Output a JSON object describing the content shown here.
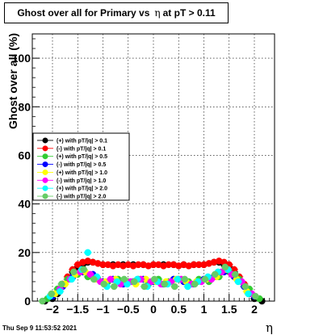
{
  "title": {
    "prefix": "Ghost over all for Primary vs",
    "symbol": "η",
    "suffix": "at pT > 0.11"
  },
  "footer": {
    "timestamp": "Thu Sep  9 11:53:52 2021"
  },
  "chart_data": {
    "type": "scatter",
    "ylabel": "Ghost over all (%)",
    "xlabel": "η",
    "xlim": [
      -2.4,
      2.4
    ],
    "ylim": [
      0,
      110
    ],
    "x_ticks": [
      {
        "v": -2,
        "label": "−2"
      },
      {
        "v": -1.5,
        "label": "−1.5"
      },
      {
        "v": -1,
        "label": "−1"
      },
      {
        "v": -0.5,
        "label": "−0.5"
      },
      {
        "v": 0,
        "label": "0"
      },
      {
        "v": 0.5,
        "label": "0.5"
      },
      {
        "v": 1,
        "label": "1"
      },
      {
        "v": 1.5,
        "label": "1.5"
      },
      {
        "v": 2,
        "label": "2"
      }
    ],
    "y_ticks": [
      {
        "v": 0,
        "label": "0"
      },
      {
        "v": 20,
        "label": "20"
      },
      {
        "v": 40,
        "label": "40"
      },
      {
        "v": 60,
        "label": "60"
      },
      {
        "v": 80,
        "label": "80"
      },
      {
        "v": 100,
        "label": "100"
      }
    ],
    "grid": true,
    "legend_position": "left-middle",
    "series": [
      {
        "name": "(+) with pT/|q| > 0.1",
        "color": "#000000",
        "x": [
          -2.15,
          -2.0,
          -1.9,
          -1.8,
          -1.7,
          -1.6,
          -1.5,
          -1.4,
          -1.3,
          -1.2,
          -1.0,
          -0.8,
          -0.6,
          -0.4,
          -0.2,
          0.0,
          0.2,
          0.4,
          0.6,
          0.8,
          1.0,
          1.2,
          1.3,
          1.4,
          1.5,
          1.6,
          1.7,
          1.8,
          1.9,
          2.0,
          2.15
        ],
        "y": [
          0,
          1,
          3,
          6,
          9,
          12,
          14,
          15,
          16,
          16,
          15,
          15,
          15,
          15,
          15,
          15,
          15,
          15,
          15,
          15,
          15,
          16,
          16,
          15,
          14,
          12,
          9,
          6,
          3,
          1,
          0
        ]
      },
      {
        "name": "(-) with pT/|q| > 0.1",
        "color": "#ff0000",
        "x": [
          -1.8,
          -1.7,
          -1.6,
          -1.5,
          -1.4,
          -1.3,
          -1.2,
          -1.1,
          -1.0,
          -0.9,
          -0.8,
          -0.7,
          -0.6,
          -0.5,
          -0.4,
          -0.3,
          -0.2,
          -0.1,
          0.0,
          0.1,
          0.2,
          0.3,
          0.4,
          0.5,
          0.6,
          0.7,
          0.8,
          0.9,
          1.0,
          1.1,
          1.2,
          1.3,
          1.4,
          1.5,
          1.6,
          1.7,
          1.8
        ],
        "y": [
          7,
          10,
          13,
          15,
          16,
          16.5,
          16,
          15.5,
          15,
          15,
          14.5,
          15,
          14.5,
          15,
          14.5,
          15,
          15,
          14.5,
          15,
          15,
          14.5,
          15,
          15,
          14.5,
          15,
          14.5,
          15,
          15,
          15,
          15.5,
          16,
          16.5,
          16,
          15,
          13,
          10,
          7
        ]
      },
      {
        "name": "(+) with pT/|q| > 0.5",
        "color": "#33cc33",
        "x": [
          -2.1,
          -1.9,
          -1.7,
          -1.5,
          -1.3,
          -1.1,
          -0.9,
          -0.7,
          -0.5,
          -0.3,
          -0.1,
          0.1,
          0.3,
          0.5,
          0.7,
          0.9,
          1.1,
          1.3,
          1.5,
          1.7,
          1.9,
          2.1
        ],
        "y": [
          1,
          5,
          9,
          11,
          10,
          9,
          8,
          9,
          8,
          9,
          7,
          9,
          8,
          9,
          8,
          9,
          8,
          10,
          12,
          9,
          5,
          1
        ]
      },
      {
        "name": "(-) with pT/|q| > 0.5",
        "color": "#0000ff",
        "x": [
          -2.0,
          -1.8,
          -1.6,
          -1.4,
          -1.2,
          -1.0,
          -0.8,
          -0.6,
          -0.4,
          -0.2,
          0.0,
          0.2,
          0.4,
          0.6,
          0.8,
          1.0,
          1.2,
          1.4,
          1.6,
          1.8,
          2.0
        ],
        "y": [
          2,
          6,
          10,
          12,
          11,
          8,
          9,
          7,
          8,
          9,
          8,
          7,
          9,
          8,
          7,
          9,
          10,
          12,
          10,
          6,
          2
        ]
      },
      {
        "name": "(+) with pT/|q| > 1.0",
        "color": "#ffff00",
        "x": [
          -1.95,
          -1.75,
          -1.55,
          -1.35,
          -1.15,
          -0.95,
          -0.75,
          -0.55,
          -0.35,
          -0.15,
          0.05,
          0.25,
          0.45,
          0.65,
          0.85,
          1.05,
          1.25,
          1.45,
          1.65,
          1.85
        ],
        "y": [
          3,
          7,
          11,
          12,
          9,
          8,
          9,
          8,
          7,
          9,
          8,
          8,
          9,
          8,
          8,
          9,
          10,
          13,
          9,
          4
        ]
      },
      {
        "name": "(-) with pT/|q| > 1.0",
        "color": "#ff00ff",
        "x": [
          -1.85,
          -1.65,
          -1.45,
          -1.25,
          -1.05,
          -0.85,
          -0.65,
          -0.45,
          -0.25,
          -0.05,
          0.15,
          0.35,
          0.55,
          0.75,
          0.95,
          1.15,
          1.35,
          1.55,
          1.75,
          1.95
        ],
        "y": [
          5,
          9,
          12,
          11,
          8,
          9,
          7,
          8,
          9,
          8,
          7,
          8,
          9,
          7,
          8,
          9,
          12,
          11,
          8,
          3
        ]
      },
      {
        "name": "(+) with pT/|q| > 2.0",
        "color": "#00ffff",
        "x": [
          -2.05,
          -1.85,
          -1.62,
          -1.42,
          -1.3,
          -1.12,
          -0.92,
          -0.72,
          -0.52,
          -0.32,
          -0.12,
          0.08,
          0.28,
          0.48,
          0.68,
          0.88,
          1.08,
          1.28,
          1.48,
          1.68,
          1.88
        ],
        "y": [
          2,
          4,
          9,
          13,
          20,
          10,
          6,
          8,
          7,
          9,
          6,
          8,
          7,
          9,
          6,
          8,
          10,
          12,
          13,
          8,
          3
        ]
      },
      {
        "name": "(-) with pT/|q| > 2.0",
        "color": "#66cc66",
        "x": [
          -2.2,
          -2.02,
          -1.82,
          -1.58,
          -1.38,
          -1.18,
          -0.98,
          -0.78,
          -0.58,
          -0.38,
          -0.18,
          0.02,
          0.22,
          0.42,
          0.62,
          0.82,
          1.02,
          1.22,
          1.42,
          1.62,
          1.82,
          2.02
        ],
        "y": [
          0,
          3,
          7,
          12,
          13,
          9,
          7,
          6,
          9,
          8,
          6,
          9,
          7,
          6,
          9,
          7,
          9,
          11,
          14,
          11,
          6,
          2
        ]
      }
    ]
  }
}
